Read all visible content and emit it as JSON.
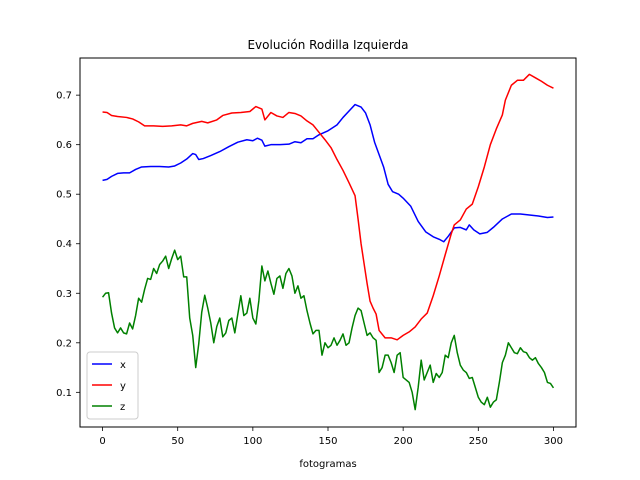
{
  "chart_data": {
    "type": "line",
    "title": "Evolución Rodilla Izquierda",
    "xlabel": "fotogramas",
    "ylabel": "",
    "xlim": [
      -15,
      315
    ],
    "ylim": [
      0.03,
      0.775
    ],
    "xticks": [
      0,
      50,
      100,
      150,
      200,
      250,
      300
    ],
    "yticks": [
      0.1,
      0.2,
      0.3,
      0.4,
      0.5,
      0.6,
      0.7
    ],
    "grid": false,
    "legend": "lower-left",
    "series": [
      {
        "name": "x",
        "color": "#0000ff",
        "points": [
          [
            0,
            0.528
          ],
          [
            3,
            0.53
          ],
          [
            6,
            0.536
          ],
          [
            10,
            0.542
          ],
          [
            14,
            0.543
          ],
          [
            18,
            0.543
          ],
          [
            22,
            0.55
          ],
          [
            26,
            0.555
          ],
          [
            32,
            0.556
          ],
          [
            38,
            0.556
          ],
          [
            44,
            0.555
          ],
          [
            48,
            0.557
          ],
          [
            52,
            0.563
          ],
          [
            56,
            0.571
          ],
          [
            60,
            0.582
          ],
          [
            62,
            0.58
          ],
          [
            64,
            0.57
          ],
          [
            67,
            0.572
          ],
          [
            72,
            0.578
          ],
          [
            78,
            0.586
          ],
          [
            84,
            0.596
          ],
          [
            90,
            0.605
          ],
          [
            96,
            0.61
          ],
          [
            100,
            0.608
          ],
          [
            103,
            0.613
          ],
          [
            106,
            0.609
          ],
          [
            108,
            0.597
          ],
          [
            112,
            0.6
          ],
          [
            118,
            0.6
          ],
          [
            124,
            0.601
          ],
          [
            128,
            0.606
          ],
          [
            132,
            0.604
          ],
          [
            136,
            0.612
          ],
          [
            140,
            0.612
          ],
          [
            144,
            0.62
          ],
          [
            150,
            0.628
          ],
          [
            156,
            0.64
          ],
          [
            160,
            0.655
          ],
          [
            164,
            0.668
          ],
          [
            168,
            0.681
          ],
          [
            172,
            0.676
          ],
          [
            175,
            0.664
          ],
          [
            178,
            0.64
          ],
          [
            181,
            0.605
          ],
          [
            184,
            0.58
          ],
          [
            187,
            0.555
          ],
          [
            190,
            0.52
          ],
          [
            193,
            0.505
          ],
          [
            197,
            0.5
          ],
          [
            200,
            0.492
          ],
          [
            205,
            0.476
          ],
          [
            210,
            0.445
          ],
          [
            215,
            0.424
          ],
          [
            220,
            0.414
          ],
          [
            224,
            0.409
          ],
          [
            227,
            0.404
          ],
          [
            230,
            0.415
          ],
          [
            234,
            0.432
          ],
          [
            238,
            0.433
          ],
          [
            242,
            0.428
          ],
          [
            244,
            0.438
          ],
          [
            247,
            0.428
          ],
          [
            251,
            0.42
          ],
          [
            256,
            0.423
          ],
          [
            260,
            0.433
          ],
          [
            266,
            0.45
          ],
          [
            272,
            0.46
          ],
          [
            278,
            0.46
          ],
          [
            284,
            0.458
          ],
          [
            290,
            0.456
          ],
          [
            296,
            0.453
          ],
          [
            300,
            0.454
          ]
        ]
      },
      {
        "name": "y",
        "color": "#ff0000",
        "points": [
          [
            0,
            0.666
          ],
          [
            3,
            0.665
          ],
          [
            6,
            0.659
          ],
          [
            10,
            0.657
          ],
          [
            16,
            0.655
          ],
          [
            20,
            0.652
          ],
          [
            24,
            0.646
          ],
          [
            28,
            0.638
          ],
          [
            34,
            0.638
          ],
          [
            40,
            0.637
          ],
          [
            46,
            0.638
          ],
          [
            52,
            0.64
          ],
          [
            56,
            0.638
          ],
          [
            60,
            0.643
          ],
          [
            66,
            0.647
          ],
          [
            70,
            0.644
          ],
          [
            76,
            0.65
          ],
          [
            80,
            0.659
          ],
          [
            86,
            0.664
          ],
          [
            92,
            0.665
          ],
          [
            98,
            0.667
          ],
          [
            102,
            0.677
          ],
          [
            106,
            0.672
          ],
          [
            108,
            0.65
          ],
          [
            112,
            0.665
          ],
          [
            116,
            0.658
          ],
          [
            120,
            0.655
          ],
          [
            124,
            0.665
          ],
          [
            128,
            0.663
          ],
          [
            132,
            0.658
          ],
          [
            136,
            0.648
          ],
          [
            140,
            0.64
          ],
          [
            144,
            0.625
          ],
          [
            148,
            0.61
          ],
          [
            152,
            0.594
          ],
          [
            156,
            0.57
          ],
          [
            160,
            0.548
          ],
          [
            164,
            0.523
          ],
          [
            168,
            0.497
          ],
          [
            170,
            0.45
          ],
          [
            172,
            0.4
          ],
          [
            174,
            0.36
          ],
          [
            176,
            0.32
          ],
          [
            178,
            0.284
          ],
          [
            180,
            0.27
          ],
          [
            182,
            0.258
          ],
          [
            184,
            0.225
          ],
          [
            188,
            0.21
          ],
          [
            192,
            0.21
          ],
          [
            196,
            0.206
          ],
          [
            200,
            0.215
          ],
          [
            204,
            0.222
          ],
          [
            208,
            0.232
          ],
          [
            212,
            0.248
          ],
          [
            216,
            0.26
          ],
          [
            220,
            0.295
          ],
          [
            224,
            0.335
          ],
          [
            228,
            0.378
          ],
          [
            232,
            0.42
          ],
          [
            234,
            0.438
          ],
          [
            238,
            0.448
          ],
          [
            242,
            0.47
          ],
          [
            246,
            0.48
          ],
          [
            250,
            0.515
          ],
          [
            254,
            0.555
          ],
          [
            258,
            0.6
          ],
          [
            262,
            0.632
          ],
          [
            266,
            0.66
          ],
          [
            268,
            0.69
          ],
          [
            272,
            0.72
          ],
          [
            276,
            0.73
          ],
          [
            280,
            0.73
          ],
          [
            284,
            0.742
          ],
          [
            288,
            0.735
          ],
          [
            292,
            0.728
          ],
          [
            296,
            0.72
          ],
          [
            300,
            0.714
          ]
        ]
      },
      {
        "name": "z",
        "color": "#008000",
        "points": [
          [
            0,
            0.292
          ],
          [
            2,
            0.3
          ],
          [
            4,
            0.301
          ],
          [
            6,
            0.26
          ],
          [
            8,
            0.23
          ],
          [
            10,
            0.22
          ],
          [
            12,
            0.23
          ],
          [
            14,
            0.22
          ],
          [
            16,
            0.218
          ],
          [
            18,
            0.24
          ],
          [
            20,
            0.228
          ],
          [
            22,
            0.255
          ],
          [
            24,
            0.29
          ],
          [
            26,
            0.282
          ],
          [
            28,
            0.308
          ],
          [
            30,
            0.33
          ],
          [
            32,
            0.328
          ],
          [
            34,
            0.35
          ],
          [
            36,
            0.34
          ],
          [
            38,
            0.358
          ],
          [
            40,
            0.365
          ],
          [
            42,
            0.375
          ],
          [
            44,
            0.35
          ],
          [
            46,
            0.37
          ],
          [
            48,
            0.387
          ],
          [
            50,
            0.368
          ],
          [
            52,
            0.375
          ],
          [
            54,
            0.333
          ],
          [
            56,
            0.333
          ],
          [
            58,
            0.25
          ],
          [
            60,
            0.215
          ],
          [
            62,
            0.15
          ],
          [
            64,
            0.198
          ],
          [
            66,
            0.262
          ],
          [
            68,
            0.296
          ],
          [
            70,
            0.27
          ],
          [
            72,
            0.24
          ],
          [
            74,
            0.2
          ],
          [
            76,
            0.233
          ],
          [
            78,
            0.25
          ],
          [
            80,
            0.212
          ],
          [
            82,
            0.22
          ],
          [
            84,
            0.245
          ],
          [
            86,
            0.25
          ],
          [
            88,
            0.22
          ],
          [
            90,
            0.258
          ],
          [
            92,
            0.295
          ],
          [
            94,
            0.255
          ],
          [
            96,
            0.26
          ],
          [
            98,
            0.29
          ],
          [
            100,
            0.25
          ],
          [
            102,
            0.238
          ],
          [
            104,
            0.285
          ],
          [
            106,
            0.355
          ],
          [
            108,
            0.325
          ],
          [
            110,
            0.345
          ],
          [
            112,
            0.32
          ],
          [
            114,
            0.298
          ],
          [
            116,
            0.33
          ],
          [
            118,
            0.335
          ],
          [
            120,
            0.31
          ],
          [
            122,
            0.34
          ],
          [
            124,
            0.35
          ],
          [
            126,
            0.335
          ],
          [
            128,
            0.3
          ],
          [
            130,
            0.315
          ],
          [
            132,
            0.29
          ],
          [
            134,
            0.295
          ],
          [
            136,
            0.265
          ],
          [
            138,
            0.24
          ],
          [
            140,
            0.218
          ],
          [
            142,
            0.225
          ],
          [
            144,
            0.225
          ],
          [
            146,
            0.175
          ],
          [
            148,
            0.2
          ],
          [
            150,
            0.19
          ],
          [
            152,
            0.195
          ],
          [
            154,
            0.21
          ],
          [
            156,
            0.195
          ],
          [
            158,
            0.205
          ],
          [
            160,
            0.218
          ],
          [
            162,
            0.195
          ],
          [
            164,
            0.2
          ],
          [
            166,
            0.23
          ],
          [
            168,
            0.255
          ],
          [
            170,
            0.27
          ],
          [
            172,
            0.265
          ],
          [
            174,
            0.24
          ],
          [
            176,
            0.215
          ],
          [
            178,
            0.22
          ],
          [
            180,
            0.21
          ],
          [
            182,
            0.205
          ],
          [
            184,
            0.14
          ],
          [
            186,
            0.15
          ],
          [
            188,
            0.175
          ],
          [
            190,
            0.175
          ],
          [
            192,
            0.16
          ],
          [
            194,
            0.14
          ],
          [
            196,
            0.175
          ],
          [
            198,
            0.18
          ],
          [
            200,
            0.13
          ],
          [
            202,
            0.125
          ],
          [
            204,
            0.12
          ],
          [
            206,
            0.1
          ],
          [
            208,
            0.065
          ],
          [
            210,
            0.11
          ],
          [
            212,
            0.165
          ],
          [
            214,
            0.125
          ],
          [
            216,
            0.14
          ],
          [
            218,
            0.155
          ],
          [
            220,
            0.12
          ],
          [
            222,
            0.138
          ],
          [
            224,
            0.13
          ],
          [
            226,
            0.14
          ],
          [
            228,
            0.175
          ],
          [
            230,
            0.17
          ],
          [
            232,
            0.2
          ],
          [
            234,
            0.215
          ],
          [
            236,
            0.18
          ],
          [
            238,
            0.155
          ],
          [
            240,
            0.145
          ],
          [
            242,
            0.14
          ],
          [
            244,
            0.128
          ],
          [
            246,
            0.13
          ],
          [
            248,
            0.11
          ],
          [
            250,
            0.09
          ],
          [
            252,
            0.08
          ],
          [
            254,
            0.075
          ],
          [
            256,
            0.09
          ],
          [
            258,
            0.07
          ],
          [
            260,
            0.08
          ],
          [
            262,
            0.085
          ],
          [
            264,
            0.12
          ],
          [
            266,
            0.16
          ],
          [
            268,
            0.175
          ],
          [
            270,
            0.2
          ],
          [
            272,
            0.19
          ],
          [
            274,
            0.18
          ],
          [
            276,
            0.178
          ],
          [
            278,
            0.19
          ],
          [
            280,
            0.182
          ],
          [
            282,
            0.18
          ],
          [
            284,
            0.17
          ],
          [
            286,
            0.165
          ],
          [
            288,
            0.17
          ],
          [
            290,
            0.158
          ],
          [
            292,
            0.15
          ],
          [
            294,
            0.14
          ],
          [
            296,
            0.12
          ],
          [
            298,
            0.118
          ],
          [
            300,
            0.109
          ]
        ]
      }
    ]
  }
}
